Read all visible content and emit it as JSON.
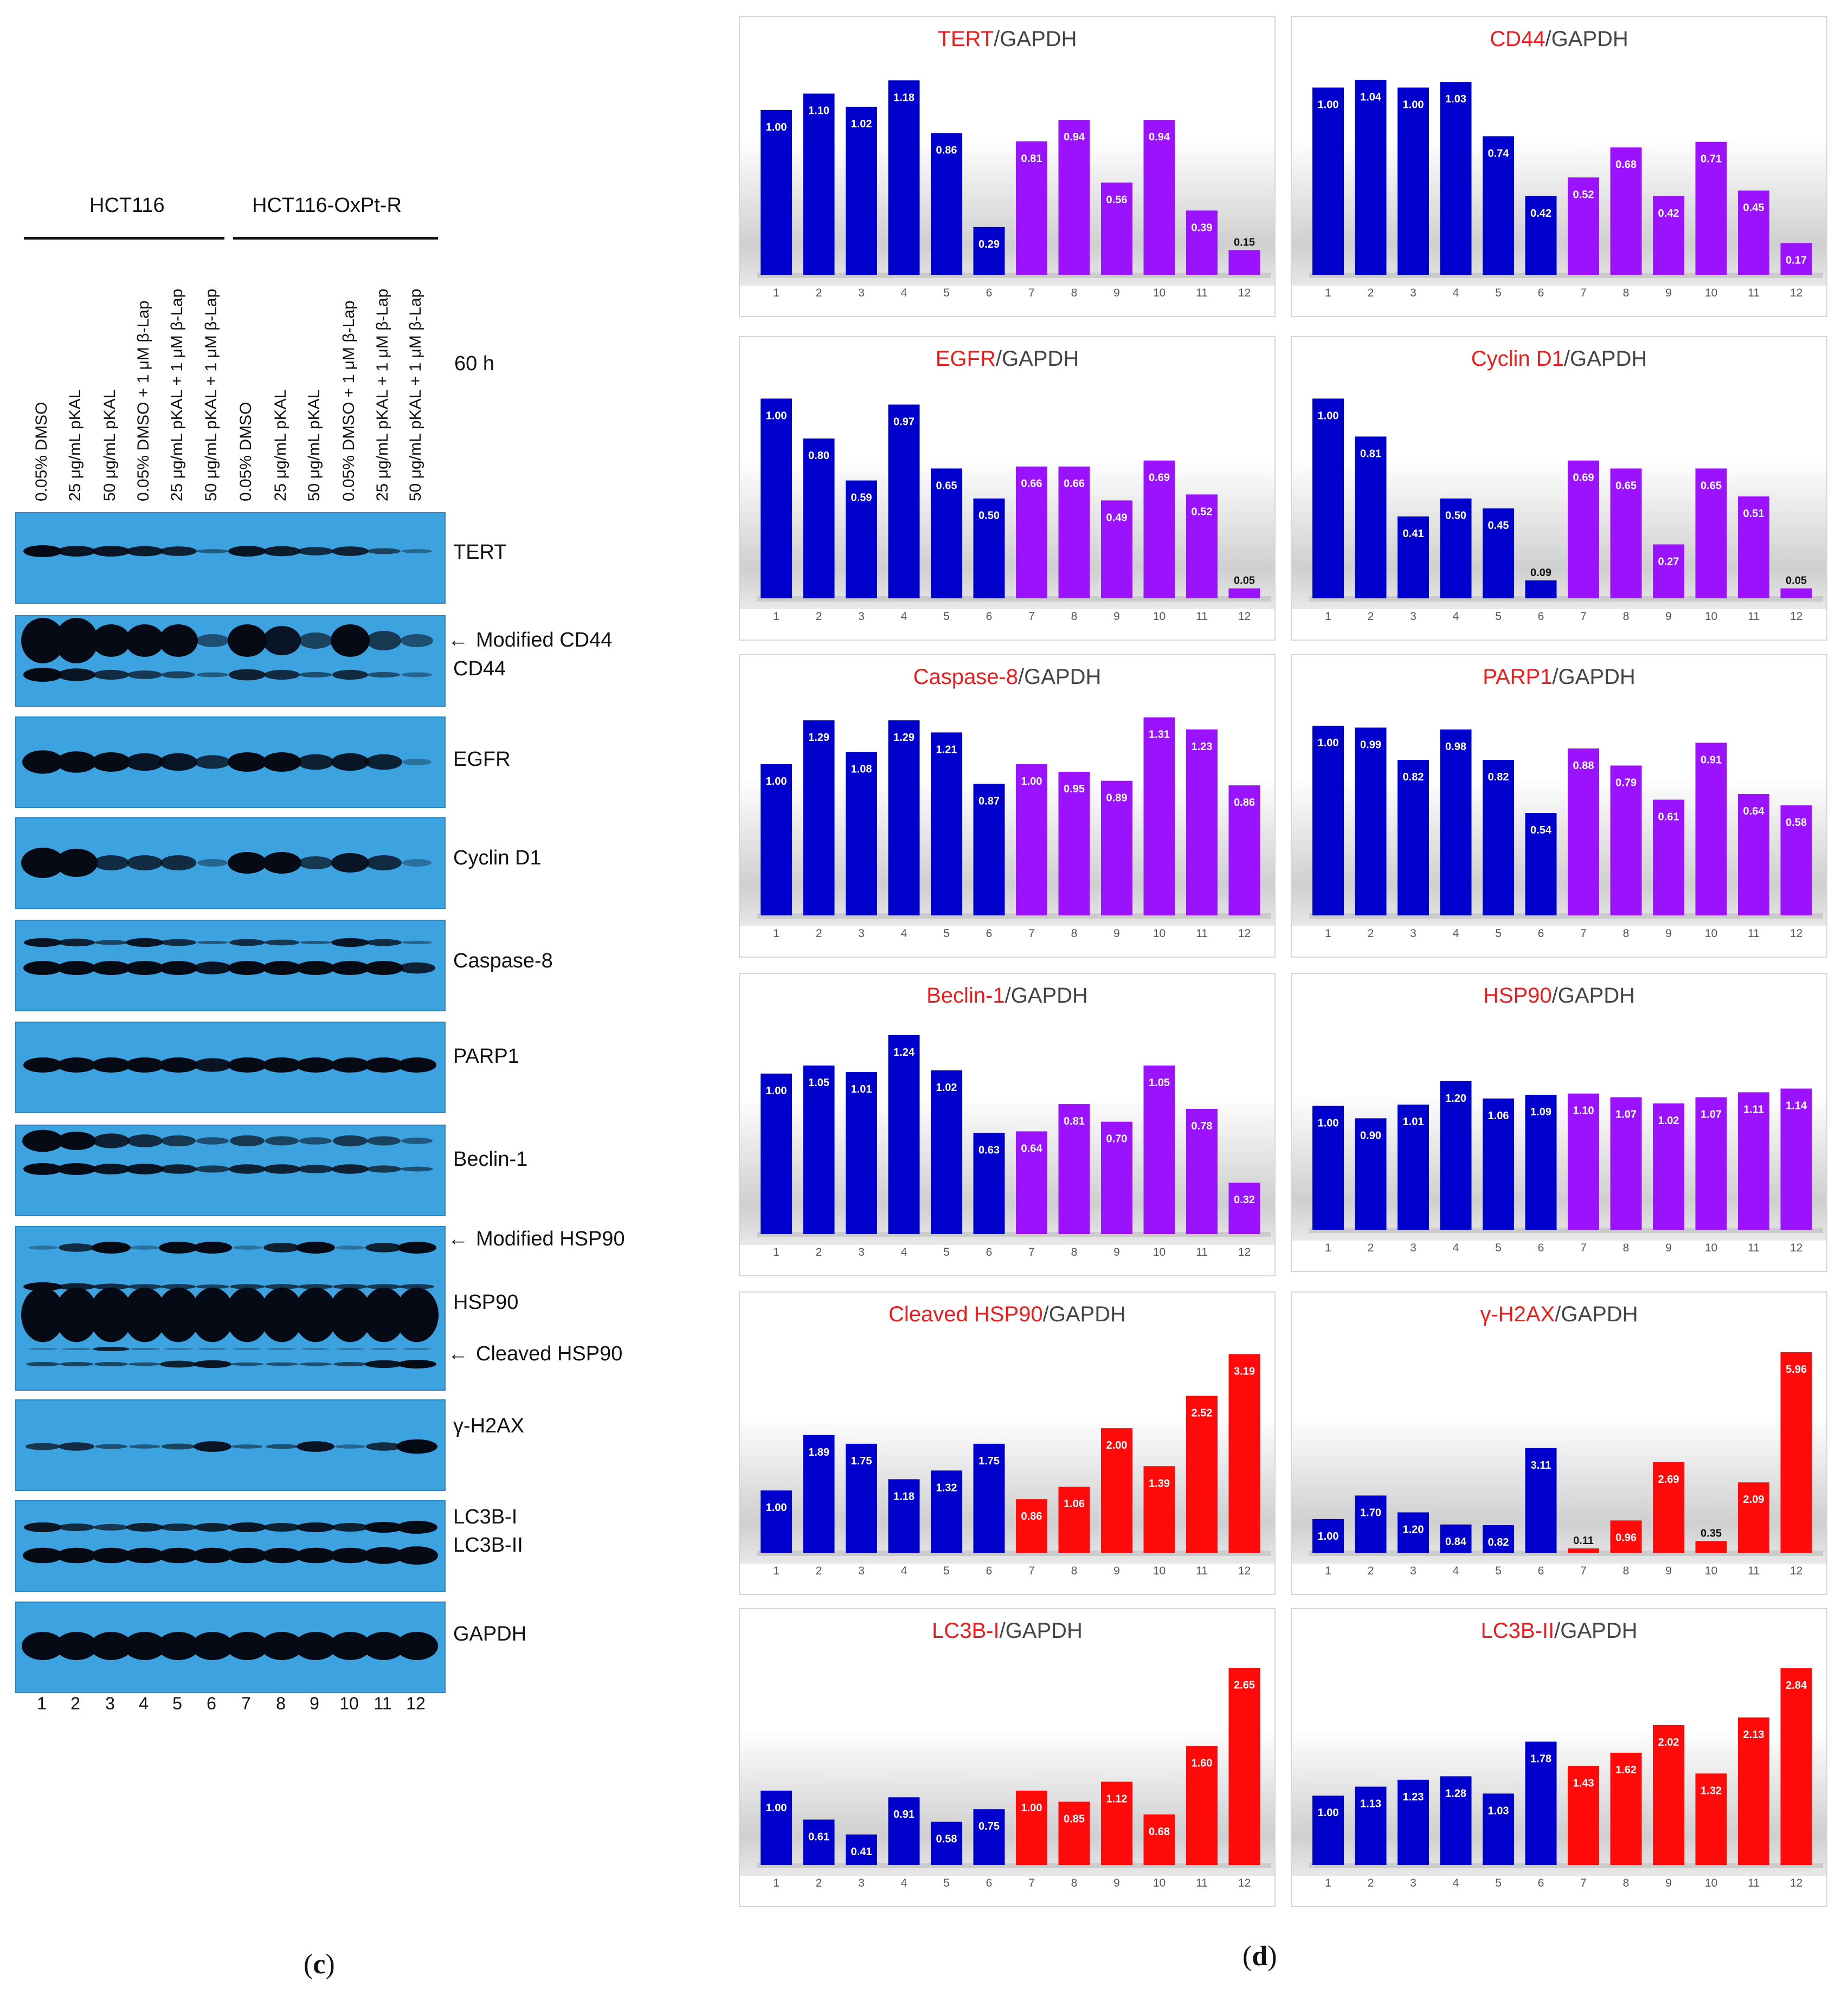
{
  "panel_c": {
    "letter": "c",
    "group_left": "HCT116",
    "group_right": "HCT116-OxPt-R",
    "time": "60 h",
    "lane_headers": [
      "0.05% DMSO",
      "25 μg/mL pKAL",
      "50 μg/mL pKAL",
      "0.05% DMSO + 1 μM β-Lap",
      "25 μg/mL pKAL + 1 μM β-Lap",
      "50 μg/mL pKAL + 1 μM β-Lap",
      "0.05% DMSO",
      "25 μg/mL pKAL",
      "50 μg/mL pKAL",
      "0.05% DMSO + 1 μM β-Lap",
      "25 μg/mL pKAL + 1 μM β-Lap",
      "50 μg/mL pKAL + 1 μM β-Lap"
    ],
    "lane_numbers": [
      "1",
      "2",
      "3",
      "4",
      "5",
      "6",
      "7",
      "8",
      "9",
      "10",
      "11",
      "12"
    ],
    "blots": {
      "tert": "TERT",
      "cd44_modified": "Modified CD44",
      "cd44": "CD44",
      "egfr": "EGFR",
      "cyclin_d1": "Cyclin D1",
      "caspase8": "Caspase-8",
      "parp1": "PARP1",
      "beclin1": "Beclin-1",
      "hsp90_modified": "Modified HSP90",
      "hsp90": "HSP90",
      "hsp90_cleaved": "Cleaved HSP90",
      "h2ax": "γ-H2AX",
      "lc3b_i": "LC3B-I",
      "lc3b_ii": "LC3B-II",
      "gapdh": "GAPDH"
    },
    "arrow": "←"
  },
  "panel_d": {
    "letter": "d",
    "colors": {
      "blue": "#0000cc",
      "purple": "#9b12ff",
      "red": "#ff0a0a",
      "title_red": "#ee1c1c"
    }
  },
  "chart_data": [
    {
      "type": "bar",
      "title_red": "TERT",
      "title_rest": "/GAPDH",
      "categories": [
        "1",
        "2",
        "3",
        "4",
        "5",
        "6",
        "7",
        "8",
        "9",
        "10",
        "11",
        "12"
      ],
      "values": [
        1.0,
        1.1,
        1.02,
        1.18,
        0.86,
        0.29,
        0.81,
        0.94,
        0.56,
        0.94,
        0.39,
        0.15
      ],
      "labels": [
        "1.00",
        "1.10",
        "1.02",
        "1.18",
        "0.86",
        "0.29",
        "0.81",
        "0.94",
        "0.56",
        "0.94",
        "0.39",
        "0.15"
      ],
      "colors": [
        "blue",
        "blue",
        "blue",
        "blue",
        "blue",
        "blue",
        "purple",
        "purple",
        "purple",
        "purple",
        "purple",
        "purple"
      ],
      "ylim": [
        0,
        1.25
      ]
    },
    {
      "type": "bar",
      "title_red": "CD44",
      "title_rest": "/GAPDH",
      "categories": [
        "1",
        "2",
        "3",
        "4",
        "5",
        "6",
        "7",
        "8",
        "9",
        "10",
        "11",
        "12"
      ],
      "values": [
        1.0,
        1.04,
        1.0,
        1.03,
        0.74,
        0.42,
        0.52,
        0.68,
        0.42,
        0.71,
        0.45,
        0.17
      ],
      "labels": [
        "1.00",
        "1.04",
        "1.00",
        "1.03",
        "0.74",
        "0.42",
        "0.52",
        "0.68",
        "0.42",
        "0.71",
        "0.45",
        "0.17"
      ],
      "colors": [
        "blue",
        "blue",
        "blue",
        "blue",
        "blue",
        "blue",
        "purple",
        "purple",
        "purple",
        "purple",
        "purple",
        "purple"
      ],
      "ylim": [
        0,
        1.1
      ]
    },
    {
      "type": "bar",
      "title_red": "EGFR",
      "title_rest": "/GAPDH",
      "categories": [
        "1",
        "2",
        "3",
        "4",
        "5",
        "6",
        "7",
        "8",
        "9",
        "10",
        "11",
        "12"
      ],
      "values": [
        1.0,
        0.8,
        0.59,
        0.97,
        0.65,
        0.5,
        0.66,
        0.66,
        0.49,
        0.69,
        0.52,
        0.05
      ],
      "labels": [
        "1.00",
        "0.80",
        "0.59",
        "0.97",
        "0.65",
        "0.50",
        "0.66",
        "0.66",
        "0.49",
        "0.69",
        "0.52",
        "0.05"
      ],
      "colors": [
        "blue",
        "blue",
        "blue",
        "blue",
        "blue",
        "blue",
        "purple",
        "purple",
        "purple",
        "purple",
        "purple",
        "purple"
      ],
      "ylim": [
        0,
        1.05
      ]
    },
    {
      "type": "bar",
      "title_red": "Cyclin D1",
      "title_rest": "/GAPDH",
      "categories": [
        "1",
        "2",
        "3",
        "4",
        "5",
        "6",
        "7",
        "8",
        "9",
        "10",
        "11",
        "12"
      ],
      "values": [
        1.0,
        0.81,
        0.41,
        0.5,
        0.45,
        0.09,
        0.69,
        0.65,
        0.27,
        0.65,
        0.51,
        0.05
      ],
      "labels": [
        "1.00",
        "0.81",
        "0.41",
        "0.50",
        "0.45",
        "0.09",
        "0.69",
        "0.65",
        "0.27",
        "0.65",
        "0.51",
        "0.05"
      ],
      "colors": [
        "blue",
        "blue",
        "blue",
        "blue",
        "blue",
        "blue",
        "purple",
        "purple",
        "purple",
        "purple",
        "purple",
        "purple"
      ],
      "ylim": [
        0,
        1.05
      ]
    },
    {
      "type": "bar",
      "title_red": "Caspase-8",
      "title_rest": "/GAPDH",
      "categories": [
        "1",
        "2",
        "3",
        "4",
        "5",
        "6",
        "7",
        "8",
        "9",
        "10",
        "11",
        "12"
      ],
      "values": [
        1.0,
        1.29,
        1.08,
        1.29,
        1.21,
        0.87,
        1.0,
        0.95,
        0.89,
        1.31,
        1.23,
        0.86
      ],
      "labels": [
        "1.00",
        "1.29",
        "1.08",
        "1.29",
        "1.21",
        "0.87",
        "1.00",
        "0.95",
        "0.89",
        "1.31",
        "1.23",
        "0.86"
      ],
      "colors": [
        "blue",
        "blue",
        "blue",
        "blue",
        "blue",
        "blue",
        "purple",
        "purple",
        "purple",
        "purple",
        "purple",
        "purple"
      ],
      "ylim": [
        0,
        1.38
      ]
    },
    {
      "type": "bar",
      "title_red": "PARP1",
      "title_rest": "/GAPDH",
      "categories": [
        "1",
        "2",
        "3",
        "4",
        "5",
        "6",
        "7",
        "8",
        "9",
        "10",
        "11",
        "12"
      ],
      "values": [
        1.0,
        0.99,
        0.82,
        0.98,
        0.82,
        0.54,
        0.88,
        0.79,
        0.61,
        0.91,
        0.64,
        0.58
      ],
      "labels": [
        "1.00",
        "0.99",
        "0.82",
        "0.98",
        "0.82",
        "0.54",
        "0.88",
        "0.79",
        "0.61",
        "0.91",
        "0.64",
        "0.58"
      ],
      "colors": [
        "blue",
        "blue",
        "blue",
        "blue",
        "blue",
        "blue",
        "purple",
        "purple",
        "purple",
        "purple",
        "purple",
        "purple"
      ],
      "ylim": [
        0,
        1.1
      ]
    },
    {
      "type": "bar",
      "title_red": "Beclin-1",
      "title_rest": "/GAPDH",
      "categories": [
        "1",
        "2",
        "3",
        "4",
        "5",
        "6",
        "7",
        "8",
        "9",
        "10",
        "11",
        "12"
      ],
      "values": [
        1.0,
        1.05,
        1.01,
        1.24,
        1.02,
        0.63,
        0.64,
        0.81,
        0.7,
        1.05,
        0.78,
        0.32
      ],
      "labels": [
        "1.00",
        "1.05",
        "1.01",
        "1.24",
        "1.02",
        "0.63",
        "0.64",
        "0.81",
        "0.70",
        "1.05",
        "0.78",
        "0.32"
      ],
      "colors": [
        "blue",
        "blue",
        "blue",
        "blue",
        "blue",
        "blue",
        "purple",
        "purple",
        "purple",
        "purple",
        "purple",
        "purple"
      ],
      "ylim": [
        0,
        1.3
      ]
    },
    {
      "type": "bar",
      "title_red": "HSP90",
      "title_rest": "/GAPDH",
      "categories": [
        "1",
        "2",
        "3",
        "4",
        "5",
        "6",
        "7",
        "8",
        "9",
        "10",
        "11",
        "12"
      ],
      "values": [
        1.0,
        0.9,
        1.01,
        1.2,
        1.06,
        1.09,
        1.1,
        1.07,
        1.02,
        1.07,
        1.11,
        1.14
      ],
      "labels": [
        "1.00",
        "0.90",
        "1.01",
        "1.20",
        "1.06",
        "1.09",
        "1.10",
        "1.07",
        "1.02",
        "1.07",
        "1.11",
        "1.14"
      ],
      "colors": [
        "blue",
        "blue",
        "blue",
        "blue",
        "blue",
        "blue",
        "purple",
        "purple",
        "purple",
        "purple",
        "purple",
        "purple"
      ],
      "ylim": [
        0,
        1.65
      ]
    },
    {
      "type": "bar",
      "title_red": "Cleaved HSP90",
      "title_rest": "/GAPDH",
      "categories": [
        "1",
        "2",
        "3",
        "4",
        "5",
        "6",
        "7",
        "8",
        "9",
        "10",
        "11",
        "12"
      ],
      "values": [
        1.0,
        1.89,
        1.75,
        1.18,
        1.32,
        1.75,
        0.86,
        1.06,
        2.0,
        1.39,
        2.52,
        3.19
      ],
      "labels": [
        "1.00",
        "1.89",
        "1.75",
        "1.18",
        "1.32",
        "1.75",
        "0.86",
        "1.06",
        "2.00",
        "1.39",
        "2.52",
        "3.19"
      ],
      "colors": [
        "blue",
        "blue",
        "blue",
        "blue",
        "blue",
        "blue",
        "red",
        "red",
        "red",
        "red",
        "red",
        "red"
      ],
      "ylim": [
        0,
        3.35
      ]
    },
    {
      "type": "bar",
      "title_red": "γ-H2AX",
      "title_rest": "/GAPDH",
      "categories": [
        "1",
        "2",
        "3",
        "4",
        "5",
        "6",
        "7",
        "8",
        "9",
        "10",
        "11",
        "12"
      ],
      "values": [
        1.0,
        1.7,
        1.2,
        0.84,
        0.82,
        3.11,
        0.11,
        0.96,
        2.69,
        0.35,
        2.09,
        5.96
      ],
      "labels": [
        "1.00",
        "1.70",
        "1.20",
        "0.84",
        "0.82",
        "3.11",
        "0.11",
        "0.96",
        "2.69",
        "0.35",
        "2.09",
        "5.96"
      ],
      "colors": [
        "blue",
        "blue",
        "blue",
        "blue",
        "blue",
        "blue",
        "red",
        "red",
        "red",
        "red",
        "red",
        "red"
      ],
      "ylim": [
        0,
        6.2
      ]
    },
    {
      "type": "bar",
      "title_red": "LC3B-I",
      "title_rest": "/GAPDH",
      "categories": [
        "1",
        "2",
        "3",
        "4",
        "5",
        "6",
        "7",
        "8",
        "9",
        "10",
        "11",
        "12"
      ],
      "values": [
        1.0,
        0.61,
        0.41,
        0.91,
        0.58,
        0.75,
        1.0,
        0.85,
        1.12,
        0.68,
        1.6,
        2.65
      ],
      "labels": [
        "1.00",
        "0.61",
        "0.41",
        "0.91",
        "0.58",
        "0.75",
        "1.00",
        "0.85",
        "1.12",
        "0.68",
        "1.60",
        "2.65"
      ],
      "colors": [
        "blue",
        "blue",
        "blue",
        "blue",
        "blue",
        "blue",
        "red",
        "red",
        "red",
        "red",
        "red",
        "red"
      ],
      "ylim": [
        0,
        2.75
      ]
    },
    {
      "type": "bar",
      "title_red": "LC3B-II",
      "title_rest": "/GAPDH",
      "categories": [
        "1",
        "2",
        "3",
        "4",
        "5",
        "6",
        "7",
        "8",
        "9",
        "10",
        "11",
        "12"
      ],
      "values": [
        1.0,
        1.13,
        1.23,
        1.28,
        1.03,
        1.78,
        1.43,
        1.62,
        2.02,
        1.32,
        2.13,
        2.84
      ],
      "labels": [
        "1.00",
        "1.13",
        "1.23",
        "1.28",
        "1.03",
        "1.78",
        "1.43",
        "1.62",
        "2.02",
        "1.32",
        "2.13",
        "2.84"
      ],
      "colors": [
        "blue",
        "blue",
        "blue",
        "blue",
        "blue",
        "blue",
        "red",
        "red",
        "red",
        "red",
        "red",
        "red"
      ],
      "ylim": [
        0,
        2.95
      ]
    }
  ]
}
